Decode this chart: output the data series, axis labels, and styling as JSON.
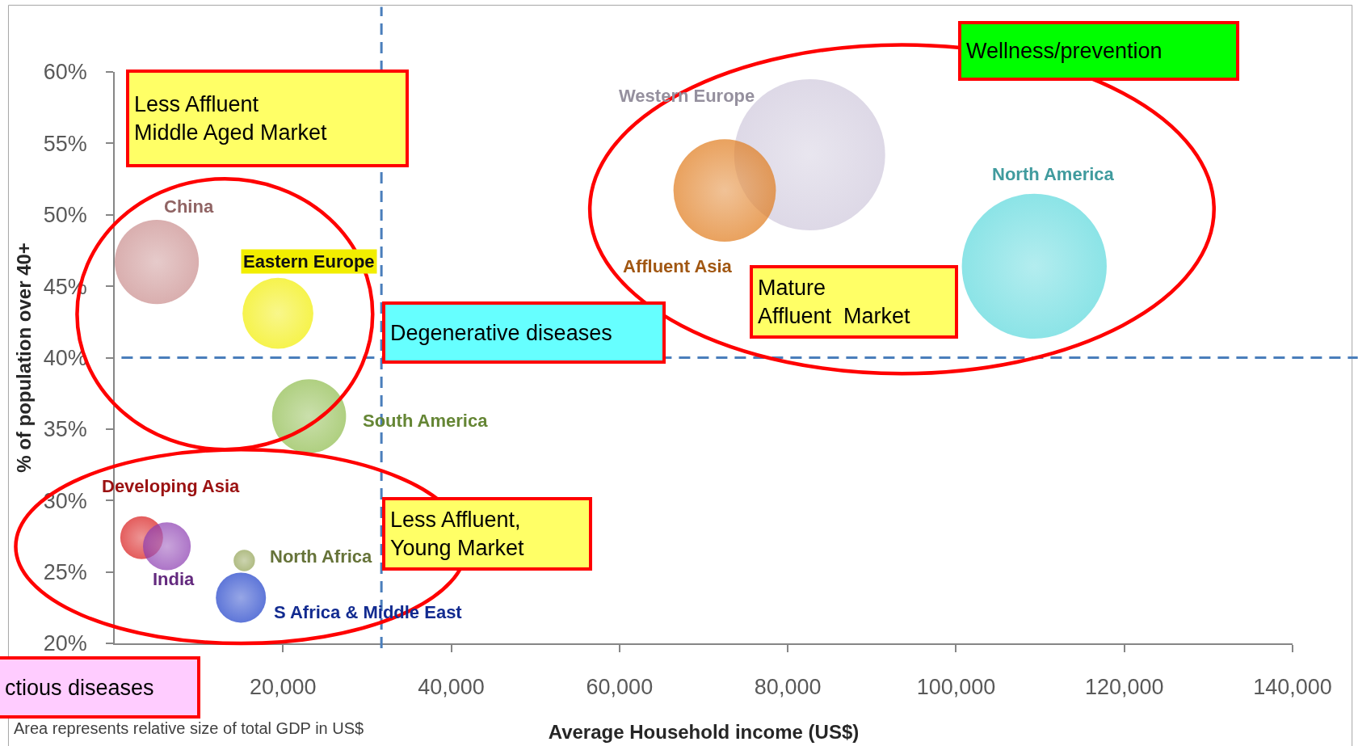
{
  "chart_data": {
    "type": "bubble",
    "xlabel": "Average Household income (US$)",
    "ylabel": "% of population over 40+",
    "xlim": [
      0,
      140000
    ],
    "xticks": [
      {
        "value": 20000,
        "label": "20,000"
      },
      {
        "value": 40000,
        "label": "40,000"
      },
      {
        "value": 60000,
        "label": "60,000"
      },
      {
        "value": 80000,
        "label": "80,000"
      },
      {
        "value": 100000,
        "label": "100,000"
      },
      {
        "value": 120000,
        "label": "120,000"
      },
      {
        "value": 140000,
        "label": "140,000"
      }
    ],
    "ylim": [
      20,
      60
    ],
    "yticks": [
      {
        "value": 20,
        "label": "20%"
      },
      {
        "value": 25,
        "label": "25%"
      },
      {
        "value": 30,
        "label": "30%"
      },
      {
        "value": 35,
        "label": "35%"
      },
      {
        "value": 40,
        "label": "40%"
      },
      {
        "value": 45,
        "label": "45%"
      },
      {
        "value": 50,
        "label": "50%"
      },
      {
        "value": 55,
        "label": "55%"
      },
      {
        "value": 60,
        "label": "60%"
      }
    ],
    "marker": "circle",
    "series": [
      {
        "name": "China",
        "color": "#c98c8c",
        "x": [
          5000
        ],
        "values": [
          46.7
        ],
        "sizes": [
          0.31
        ]
      },
      {
        "name": "Eastern Europe",
        "color": "#f2ee00",
        "x": [
          19400
        ],
        "values": [
          43.1
        ],
        "sizes": [
          0.22
        ]
      },
      {
        "name": "South America",
        "color": "#8dbb4a",
        "x": [
          23100
        ],
        "values": [
          35.9
        ],
        "sizes": [
          0.24
        ]
      },
      {
        "name": "Developing Asia",
        "color": "#d81818",
        "x": [
          3200
        ],
        "values": [
          27.4
        ],
        "sizes": [
          0.08
        ]
      },
      {
        "name": "India",
        "color": "#8a3ab0",
        "x": [
          6200
        ],
        "values": [
          26.8
        ],
        "sizes": [
          0.1
        ]
      },
      {
        "name": "North Africa",
        "color": "#8fa050",
        "x": [
          15400
        ],
        "values": [
          25.8
        ],
        "sizes": [
          0.02
        ]
      },
      {
        "name": "S Africa & Middle East",
        "color": "#1a3cc8",
        "x": [
          15000
        ],
        "values": [
          23.2
        ],
        "sizes": [
          0.11
        ]
      },
      {
        "name": "Western Europe",
        "color": "#cfc8dc",
        "x": [
          82600
        ],
        "values": [
          54.2
        ],
        "sizes": [
          1
        ]
      },
      {
        "name": "Affluent Asia",
        "color": "#e07a1a",
        "x": [
          72500
        ],
        "values": [
          51.7
        ],
        "sizes": [
          0.46
        ]
      },
      {
        "name": "North America",
        "color": "#5ad8dc",
        "x": [
          109300
        ],
        "values": [
          46.4
        ],
        "sizes": [
          0.92
        ]
      }
    ],
    "ref_lines": [
      {
        "axis": "x",
        "value": 31700,
        "color": "#4a7ebb",
        "line_style": "dashed"
      },
      {
        "axis": "y",
        "value": 40,
        "color": "#4a7ebb",
        "line_style": "dashed"
      }
    ],
    "annotations": [
      "Less Affluent\nMiddle Aged Market",
      "Wellness/prevention",
      "Degenerative diseases",
      "Mature\nAffluent  Market",
      "Less Affluent,\nYoung Market",
      "ctious diseases",
      "Area represents relative size of total GDP in US$"
    ]
  }
}
